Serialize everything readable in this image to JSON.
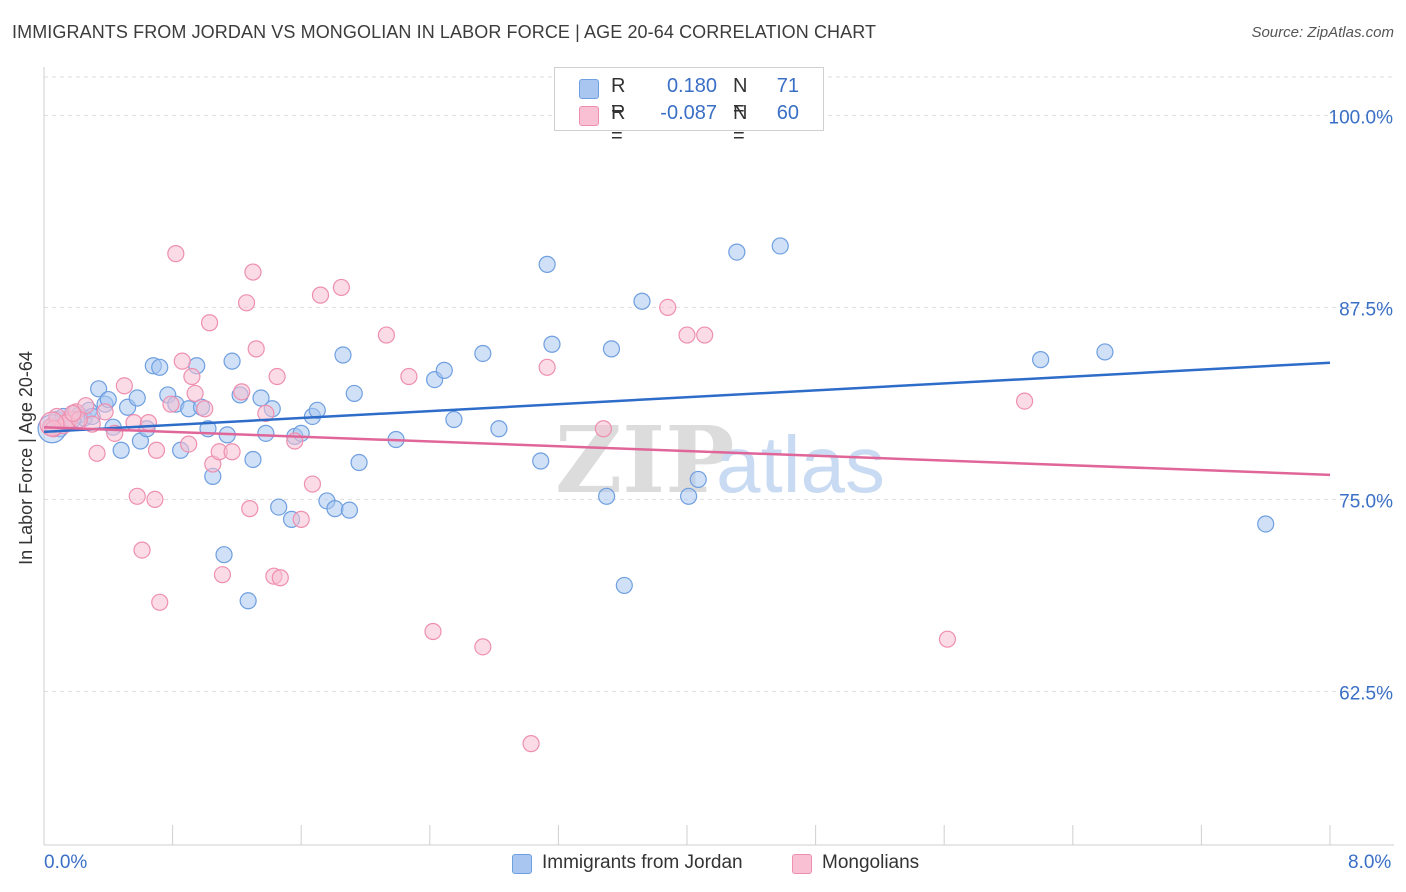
{
  "title": "IMMIGRANTS FROM JORDAN VS MONGOLIAN IN LABOR FORCE | AGE 20-64 CORRELATION CHART",
  "source": "Source: ZipAtlas.com",
  "watermark": {
    "zip": "ZIP",
    "atlas": "atlas"
  },
  "legend": {
    "rows": [
      {
        "r_label": "R =",
        "r_value": "0.180",
        "n_label": "N =",
        "n_value": "71",
        "color": "#a8c6f0",
        "border": "#6f9fe0"
      },
      {
        "r_label": "R =",
        "r_value": "-0.087",
        "n_label": "N =",
        "n_value": "60",
        "color": "#f8c0d2",
        "border": "#ee8fb0"
      }
    ]
  },
  "bottom_legend": {
    "items": [
      {
        "label": "Immigrants from Jordan",
        "color": "#a8c6f0",
        "border": "#6f9fe0"
      },
      {
        "label": "Mongolians",
        "color": "#f8c0d2",
        "border": "#ee8fb0"
      }
    ]
  },
  "y_axis_title": "In Labor Force | Age 20-64",
  "x_tick_labels": {
    "min": "0.0%",
    "max": "8.0%"
  },
  "y_tick_labels": [
    "100.0%",
    "87.5%",
    "75.0%",
    "62.5%"
  ],
  "chart_data": {
    "type": "scatter",
    "title": "IMMIGRANTS FROM JORDAN VS MONGOLIAN IN LABOR FORCE | AGE 20-64 CORRELATION CHART",
    "xlabel": "",
    "ylabel": "In Labor Force | Age 20-64",
    "xlim": [
      0,
      8
    ],
    "ylim": [
      52.5,
      102.5
    ],
    "y_ticks": [
      100,
      87.5,
      75,
      62.5
    ],
    "x_tick_labels_shown": [
      "0.0%",
      "8.0%"
    ],
    "grid": "horizontal dashed",
    "series": [
      {
        "name": "Immigrants from Jordan",
        "color": "#a8c6f0",
        "stroke": "#6f9fe0",
        "line_color": "#2d6cc8",
        "trend": {
          "x": [
            0,
            8
          ],
          "y": [
            79.4,
            83.9
          ]
        },
        "points": [
          [
            0.05,
            79.8
          ],
          [
            0.08,
            80.2
          ],
          [
            0.12,
            80.4
          ],
          [
            0.15,
            80.0
          ],
          [
            0.18,
            80.6
          ],
          [
            0.22,
            80.5
          ],
          [
            0.25,
            80.3
          ],
          [
            0.28,
            80.8
          ],
          [
            0.34,
            82.2
          ],
          [
            0.38,
            81.2
          ],
          [
            0.4,
            81.5
          ],
          [
            0.43,
            79.7
          ],
          [
            0.48,
            78.2
          ],
          [
            0.52,
            81.0
          ],
          [
            0.58,
            81.6
          ],
          [
            0.6,
            78.8
          ],
          [
            0.64,
            79.6
          ],
          [
            0.68,
            83.7
          ],
          [
            0.72,
            83.6
          ],
          [
            0.77,
            81.8
          ],
          [
            0.82,
            81.2
          ],
          [
            0.85,
            78.2
          ],
          [
            0.9,
            80.9
          ],
          [
            0.95,
            83.7
          ],
          [
            0.98,
            81.0
          ],
          [
            1.02,
            79.6
          ],
          [
            1.05,
            76.5
          ],
          [
            1.12,
            71.4
          ],
          [
            1.14,
            79.2
          ],
          [
            1.17,
            84.0
          ],
          [
            1.22,
            81.8
          ],
          [
            1.27,
            68.4
          ],
          [
            1.3,
            77.6
          ],
          [
            1.35,
            81.6
          ],
          [
            1.38,
            79.3
          ],
          [
            1.42,
            80.9
          ],
          [
            1.46,
            74.5
          ],
          [
            1.54,
            73.7
          ],
          [
            1.56,
            79.1
          ],
          [
            1.6,
            79.3
          ],
          [
            1.67,
            80.4
          ],
          [
            1.7,
            80.8
          ],
          [
            1.76,
            74.9
          ],
          [
            1.81,
            74.4
          ],
          [
            1.86,
            84.4
          ],
          [
            1.9,
            74.3
          ],
          [
            1.93,
            81.9
          ],
          [
            1.96,
            77.4
          ],
          [
            2.19,
            78.9
          ],
          [
            2.43,
            82.8
          ],
          [
            2.49,
            83.4
          ],
          [
            2.55,
            80.2
          ],
          [
            2.73,
            84.5
          ],
          [
            2.83,
            79.6
          ],
          [
            3.09,
            77.5
          ],
          [
            3.13,
            90.3
          ],
          [
            3.16,
            85.1
          ],
          [
            3.5,
            75.2
          ],
          [
            3.53,
            84.8
          ],
          [
            3.61,
            69.4
          ],
          [
            3.72,
            87.9
          ],
          [
            4.01,
            75.2
          ],
          [
            4.07,
            76.3
          ],
          [
            4.31,
            91.1
          ],
          [
            4.58,
            91.5
          ],
          [
            6.2,
            84.1
          ],
          [
            6.6,
            84.6
          ],
          [
            7.6,
            73.4
          ],
          [
            0.18,
            80.2
          ],
          [
            0.3,
            80.4
          ],
          [
            0.1,
            79.6
          ]
        ]
      },
      {
        "name": "Mongolians",
        "color": "#f8c0d2",
        "stroke": "#ee8fb0",
        "line_color": "#e0669a",
        "trend": {
          "x": [
            0,
            8
          ],
          "y": [
            79.7,
            76.6
          ]
        },
        "points": [
          [
            0.04,
            79.7
          ],
          [
            0.08,
            80.4
          ],
          [
            0.12,
            79.8
          ],
          [
            0.16,
            80.2
          ],
          [
            0.2,
            80.7
          ],
          [
            0.26,
            81.1
          ],
          [
            0.3,
            79.9
          ],
          [
            0.33,
            78.0
          ],
          [
            0.38,
            80.7
          ],
          [
            0.44,
            79.3
          ],
          [
            0.5,
            82.4
          ],
          [
            0.56,
            80.0
          ],
          [
            0.58,
            75.2
          ],
          [
            0.61,
            71.7
          ],
          [
            0.65,
            80.0
          ],
          [
            0.69,
            75.0
          ],
          [
            0.7,
            78.2
          ],
          [
            0.72,
            68.3
          ],
          [
            0.79,
            81.2
          ],
          [
            0.82,
            91.0
          ],
          [
            0.86,
            84.0
          ],
          [
            0.9,
            78.6
          ],
          [
            0.92,
            83.0
          ],
          [
            0.94,
            81.9
          ],
          [
            1.0,
            80.9
          ],
          [
            1.03,
            86.5
          ],
          [
            1.05,
            77.3
          ],
          [
            1.09,
            78.1
          ],
          [
            1.11,
            70.1
          ],
          [
            1.17,
            78.1
          ],
          [
            1.23,
            82.0
          ],
          [
            1.26,
            87.8
          ],
          [
            1.28,
            74.4
          ],
          [
            1.3,
            89.8
          ],
          [
            1.32,
            84.8
          ],
          [
            1.38,
            80.6
          ],
          [
            1.43,
            70.0
          ],
          [
            1.45,
            83.0
          ],
          [
            1.47,
            69.9
          ],
          [
            1.56,
            78.8
          ],
          [
            1.6,
            73.7
          ],
          [
            1.67,
            76.0
          ],
          [
            1.72,
            88.3
          ],
          [
            1.85,
            88.8
          ],
          [
            2.13,
            85.7
          ],
          [
            2.27,
            83.0
          ],
          [
            2.42,
            66.4
          ],
          [
            2.73,
            65.4
          ],
          [
            3.03,
            59.1
          ],
          [
            3.13,
            83.6
          ],
          [
            3.48,
            79.6
          ],
          [
            3.88,
            87.5
          ],
          [
            4.0,
            85.7
          ],
          [
            4.11,
            85.7
          ],
          [
            6.1,
            81.4
          ],
          [
            5.62,
            65.9
          ],
          [
            0.14,
            80.0
          ],
          [
            0.22,
            80.2
          ],
          [
            0.06,
            79.6
          ],
          [
            0.18,
            80.6
          ]
        ]
      }
    ]
  }
}
